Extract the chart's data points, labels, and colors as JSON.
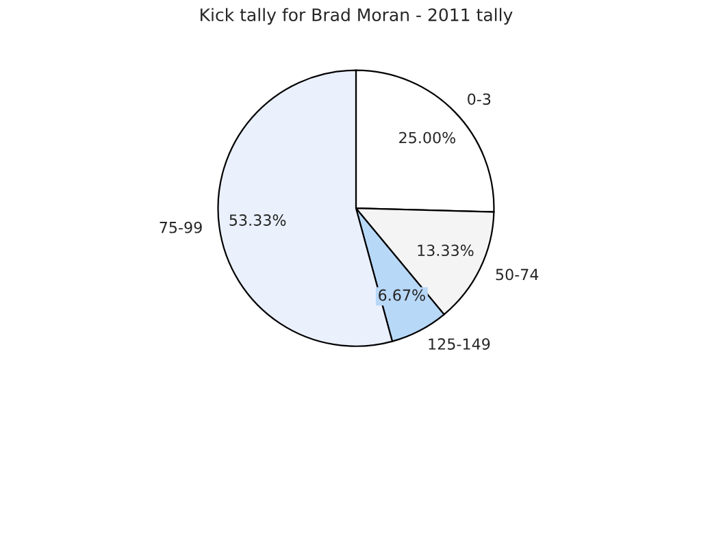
{
  "chart_data": {
    "type": "pie",
    "title": "Kick tally for Brad Moran - 2011 tally",
    "categories": [
      "0-3",
      "50-74",
      "125-149",
      "75-99"
    ],
    "values": [
      25.0,
      13.33,
      6.67,
      53.33
    ],
    "value_labels": [
      "25.00%",
      "13.33%",
      "6.67%",
      "53.33%"
    ],
    "colors": [
      "#ffffff",
      "#f4f4f4",
      "#b8d8f8",
      "#eaf0fc"
    ]
  }
}
